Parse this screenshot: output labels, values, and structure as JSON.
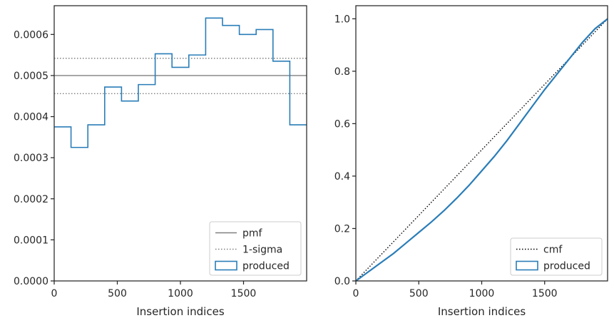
{
  "chart_data": [
    {
      "type": "histogram",
      "xlabel": "Insertion indices",
      "ylabel": "",
      "xlim": [
        0,
        2000
      ],
      "ylim": [
        0,
        0.00067
      ],
      "xticks": [
        0,
        500,
        1000,
        1500
      ],
      "yticks": [
        0,
        0.0001,
        0.0002,
        0.0003,
        0.0004,
        0.0005,
        0.0006
      ],
      "ytick_labels": [
        "0.0000",
        "0.0001",
        "0.0002",
        "0.0003",
        "0.0004",
        "0.0005",
        "0.0006"
      ],
      "bin_edges": [
        0,
        133.3,
        266.7,
        400,
        533.3,
        666.7,
        800,
        933.3,
        1066.7,
        1200,
        1333.3,
        1466.7,
        1600,
        1733.3,
        1866.7,
        2000
      ],
      "bin_values": [
        0.000375,
        0.000325,
        0.00038,
        0.000472,
        0.000438,
        0.000478,
        0.000553,
        0.00052,
        0.00055,
        0.00064,
        0.000622,
        0.0006,
        0.000612,
        0.000535,
        0.00038
      ],
      "pmf": 0.0005,
      "sigma_band": [
        0.000456,
        0.000542
      ],
      "legend": {
        "position": "bottom-right",
        "entries": [
          {
            "label": "pmf",
            "style": "solid-line",
            "color": "#808080"
          },
          {
            "label": "1-sigma",
            "style": "dotted-line",
            "color": "#808080"
          },
          {
            "label": "produced",
            "style": "patch",
            "color": "#2a7db8"
          }
        ]
      }
    },
    {
      "type": "line",
      "xlabel": "Insertion indices",
      "ylabel": "",
      "xlim": [
        0,
        2000
      ],
      "ylim": [
        0,
        1.05
      ],
      "xticks": [
        0,
        500,
        1000,
        1500
      ],
      "yticks": [
        0,
        0.2,
        0.4,
        0.6,
        0.8,
        1.0
      ],
      "ytick_labels": [
        "0.0",
        "0.2",
        "0.4",
        "0.6",
        "0.8",
        "1.0"
      ],
      "series": [
        {
          "name": "cmf",
          "style": "dotted",
          "color": "#000000",
          "x": [
            0,
            2000
          ],
          "y": [
            0,
            1.0
          ]
        },
        {
          "name": "produced",
          "style": "solid",
          "color": "#2a7db8",
          "x": [
            0,
            100,
            200,
            300,
            400,
            500,
            600,
            700,
            800,
            900,
            1000,
            1100,
            1200,
            1300,
            1400,
            1500,
            1600,
            1700,
            1800,
            1900,
            2000
          ],
          "y": [
            0,
            0.035,
            0.07,
            0.105,
            0.145,
            0.185,
            0.225,
            0.268,
            0.315,
            0.365,
            0.42,
            0.475,
            0.535,
            0.6,
            0.665,
            0.73,
            0.79,
            0.85,
            0.91,
            0.962,
            1.0
          ]
        }
      ],
      "legend": {
        "position": "bottom-right",
        "entries": [
          {
            "label": "cmf",
            "style": "dotted-line",
            "color": "#000000"
          },
          {
            "label": "produced",
            "style": "patch",
            "color": "#2a7db8"
          }
        ]
      }
    }
  ]
}
